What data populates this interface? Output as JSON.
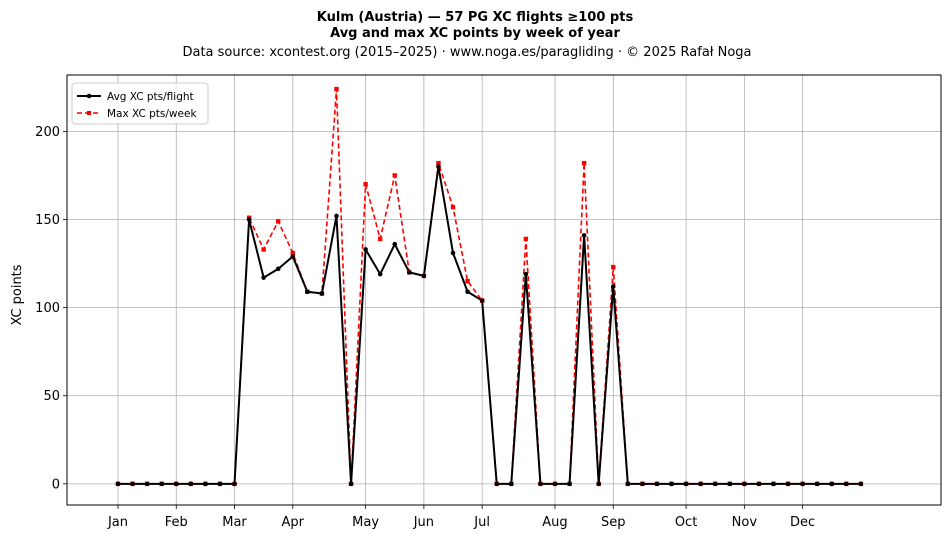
{
  "chart_data": {
    "type": "line",
    "title_line1": "Kulm (Austria)  —  57 PG XC flights ≥100 pts",
    "title_line2": "Avg and max XC points by week of year",
    "subtitle": "Data source: xcontest.org (2015–2025)  ·  www.noga.es/paragliding  ·  © 2025 Rafał Noga",
    "xlabel": "",
    "ylabel": "XC points",
    "ylim": [
      -12,
      232
    ],
    "yticks": [
      0,
      50,
      100,
      150,
      200
    ],
    "xlim": [
      -3.5,
      56.5
    ],
    "month_ticks": [
      {
        "label": "Jan",
        "week": 0
      },
      {
        "label": "Feb",
        "week": 4
      },
      {
        "label": "Mar",
        "week": 8
      },
      {
        "label": "Apr",
        "week": 12
      },
      {
        "label": "May",
        "week": 17
      },
      {
        "label": "Jun",
        "week": 21
      },
      {
        "label": "Jul",
        "week": 25
      },
      {
        "label": "Aug",
        "week": 30
      },
      {
        "label": "Sep",
        "week": 34
      },
      {
        "label": "Oct",
        "week": 39
      },
      {
        "label": "Nov",
        "week": 43
      },
      {
        "label": "Dec",
        "week": 47
      }
    ],
    "grid": true,
    "legend_position": "top-left",
    "weeks": [
      0,
      1,
      2,
      3,
      4,
      5,
      6,
      7,
      8,
      9,
      10,
      11,
      12,
      13,
      14,
      15,
      16,
      17,
      18,
      19,
      20,
      21,
      22,
      23,
      24,
      25,
      26,
      27,
      28,
      29,
      30,
      31,
      32,
      33,
      34,
      35,
      36,
      37,
      38,
      39,
      40,
      41,
      42,
      43,
      44,
      45,
      46,
      47,
      48,
      49,
      50,
      51
    ],
    "series": [
      {
        "name": "Avg XC pts/flight",
        "color": "#000000",
        "style": "solid",
        "marker": "circle",
        "values": [
          0,
          0,
          0,
          0,
          0,
          0,
          0,
          0,
          0,
          150,
          117,
          122,
          129,
          109,
          108,
          152,
          0,
          133,
          119,
          136,
          120,
          118,
          180,
          131,
          109,
          104,
          0,
          0,
          119,
          0,
          0,
          0,
          141,
          0,
          112,
          0,
          0,
          0,
          0,
          0,
          0,
          0,
          0,
          0,
          0,
          0,
          0,
          0,
          0,
          0,
          0,
          0
        ]
      },
      {
        "name": "Max XC pts/week",
        "color": "#ff0000",
        "style": "dashed",
        "marker": "square",
        "values": [
          0,
          0,
          0,
          0,
          0,
          0,
          0,
          0,
          0,
          151,
          133,
          149,
          131,
          109,
          108,
          224,
          0,
          170,
          139,
          175,
          120,
          118,
          182,
          157,
          115,
          104,
          0,
          0,
          139,
          0,
          0,
          0,
          182,
          0,
          123,
          0,
          0,
          0,
          0,
          0,
          0,
          0,
          0,
          0,
          0,
          0,
          0,
          0,
          0,
          0,
          0,
          0
        ]
      }
    ]
  }
}
